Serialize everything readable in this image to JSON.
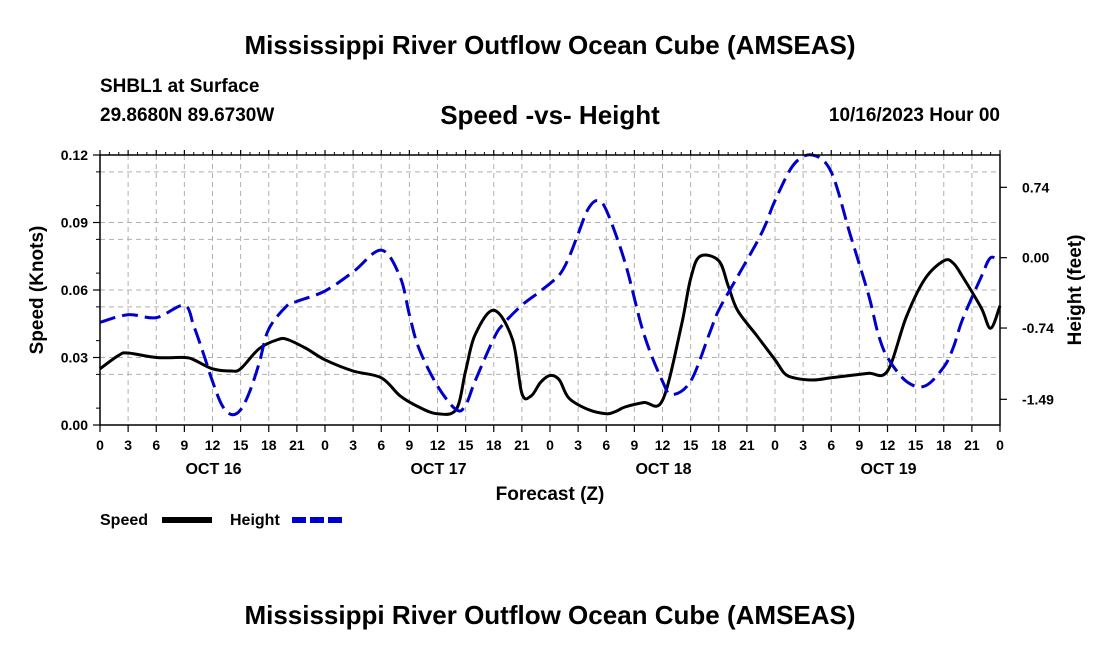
{
  "header": {
    "title": "Mississippi River Outflow Ocean Cube (AMSEAS)",
    "station": "SHBL1 at Surface",
    "coords": "29.8680N  89.6730W",
    "subtitle": "Speed -vs- Height",
    "datetime": "10/16/2023 Hour 00"
  },
  "footer": {
    "title": "Mississippi River Outflow Ocean Cube (AMSEAS)"
  },
  "colors": {
    "speed": "#000000",
    "height": "#0000cc",
    "grid": "#b0b0b0"
  },
  "chart_data": {
    "type": "line",
    "xlabel": "Forecast (Z)",
    "ylabel": "Speed (Knots)",
    "ylabel_right": "Height (feet)",
    "xlim": [
      0,
      96
    ],
    "ylim": [
      0,
      0.12
    ],
    "ylim_right": [
      -1.76,
      1.08
    ],
    "yticks": [
      "0.00",
      "0.03",
      "0.06",
      "0.09",
      "0.12"
    ],
    "yticks_right": [
      {
        "label": "0.74",
        "value": 0.74
      },
      {
        "label": "0.00",
        "value": 0.0
      },
      {
        "label": "-0.74",
        "value": -0.74
      },
      {
        "label": "-1.49",
        "value": -1.49
      }
    ],
    "xtick_labels": [
      "0",
      "3",
      "6",
      "9",
      "12",
      "15",
      "18",
      "21",
      "0",
      "3",
      "6",
      "9",
      "12",
      "15",
      "18",
      "21",
      "0",
      "3",
      "6",
      "9",
      "12",
      "15",
      "18",
      "21",
      "0",
      "3",
      "6",
      "9",
      "12",
      "15",
      "18",
      "21",
      "0"
    ],
    "day_labels": [
      {
        "label": "OCT 16",
        "hour": 12
      },
      {
        "label": "OCT 17",
        "hour": 36
      },
      {
        "label": "OCT 18",
        "hour": 60
      },
      {
        "label": "OCT 19",
        "hour": 84
      }
    ],
    "grid": true,
    "legend": [
      {
        "name": "Speed",
        "style": "solid"
      },
      {
        "name": "Height",
        "style": "dashed"
      }
    ],
    "series": [
      {
        "name": "Speed",
        "axis": "left",
        "x": [
          0,
          2,
          3,
          6,
          9,
          10,
          12,
          14,
          15,
          17,
          19,
          20,
          22,
          24,
          27,
          30,
          32,
          34,
          36,
          38,
          39,
          40,
          42,
          44,
          45,
          46,
          47,
          48,
          49,
          50,
          52,
          54,
          55,
          56,
          58,
          60,
          62,
          63,
          64,
          66,
          67,
          68,
          70,
          72,
          73,
          74,
          76,
          78,
          80,
          82,
          84,
          86,
          88,
          90,
          91,
          92,
          94,
          95,
          96
        ],
        "values": [
          0.025,
          0.031,
          0.032,
          0.03,
          0.03,
          0.029,
          0.025,
          0.024,
          0.025,
          0.034,
          0.038,
          0.038,
          0.034,
          0.029,
          0.024,
          0.021,
          0.013,
          0.008,
          0.005,
          0.007,
          0.024,
          0.04,
          0.051,
          0.038,
          0.014,
          0.013,
          0.019,
          0.022,
          0.02,
          0.012,
          0.007,
          0.005,
          0.006,
          0.008,
          0.01,
          0.011,
          0.044,
          0.065,
          0.075,
          0.073,
          0.062,
          0.051,
          0.04,
          0.029,
          0.023,
          0.021,
          0.02,
          0.021,
          0.022,
          0.023,
          0.024,
          0.048,
          0.065,
          0.073,
          0.072,
          0.066,
          0.052,
          0.043,
          0.053
        ]
      },
      {
        "name": "Height",
        "axis": "right",
        "x": [
          0,
          3,
          6,
          9,
          10,
          11,
          12,
          13,
          14,
          15,
          16,
          17,
          18,
          20,
          21,
          24,
          27,
          30,
          32,
          33,
          34,
          36,
          38,
          39,
          40,
          42,
          43,
          45,
          47,
          49,
          50,
          51,
          52,
          53,
          54,
          56,
          58,
          60,
          61,
          63,
          65,
          66,
          68,
          70,
          71,
          72,
          74,
          76,
          78,
          80,
          82,
          83,
          84,
          86,
          88,
          90,
          91,
          92,
          94,
          95,
          96
        ],
        "values": [
          -0.68,
          -0.6,
          -0.63,
          -0.5,
          -0.72,
          -1.0,
          -1.3,
          -1.55,
          -1.65,
          -1.6,
          -1.4,
          -1.1,
          -0.75,
          -0.5,
          -0.46,
          -0.35,
          -0.15,
          0.08,
          -0.2,
          -0.6,
          -0.95,
          -1.35,
          -1.6,
          -1.55,
          -1.3,
          -0.85,
          -0.7,
          -0.5,
          -0.35,
          -0.18,
          0.0,
          0.25,
          0.5,
          0.6,
          0.5,
          -0.05,
          -0.8,
          -1.3,
          -1.44,
          -1.3,
          -0.8,
          -0.55,
          -0.2,
          0.15,
          0.35,
          0.6,
          0.98,
          1.08,
          0.9,
          0.25,
          -0.4,
          -0.8,
          -1.05,
          -1.3,
          -1.35,
          -1.15,
          -0.95,
          -0.65,
          -0.2,
          0.0,
          -0.05
        ]
      }
    ]
  }
}
